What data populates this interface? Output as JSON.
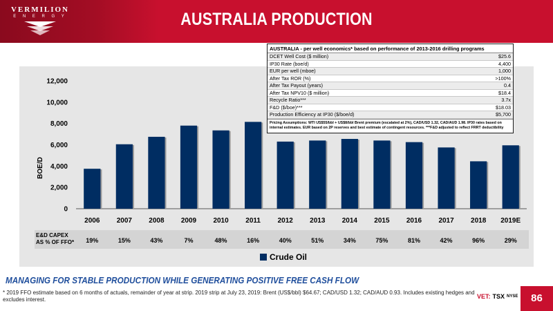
{
  "header": {
    "logo_main": "VERMILION",
    "logo_sub": "E N E R G Y",
    "title": "AUSTRALIA PRODUCTION"
  },
  "economics": {
    "title": "AUSTRALIA - per well economics* based on performance of 2013-2016 drilling programs",
    "rows": [
      {
        "label": "DCET Well Cost ($ million)",
        "value": "$25.6"
      },
      {
        "label": "IP30 Rate (boe/d)",
        "value": "4,400"
      },
      {
        "label": "EUR per well (mboe)",
        "value": "1,000"
      },
      {
        "label": "After Tax ROR (%)",
        "value": ">100%"
      },
      {
        "label": "After Tax Payout (years)",
        "value": "0.4"
      },
      {
        "label": "After Tax NPV10 ($ million)",
        "value": "$18.4"
      },
      {
        "label": "Recycle Ratio***",
        "value": "3.7x"
      },
      {
        "label": "F&D ($/boe)***",
        "value": "$18.03"
      },
      {
        "label": "Production Efficiency at IP30 ($/boe/d)",
        "value": "$5,700"
      }
    ],
    "note": "Pricing Assumptions: WTI US$55/bbl + US$8/bbl Brent premium (escalated at 2%), CAD/USD 1.32, CAD/AUD 1.98. IP30 rates based on internal estimates. EUR based on 2P reserves and best estimate of contingent resources. ***F&D adjusted to reflect FRRT deductibility"
  },
  "chart_data": {
    "type": "bar",
    "categories": [
      "2006",
      "2007",
      "2008",
      "2009",
      "2010",
      "2011",
      "2012",
      "2013",
      "2014",
      "2015",
      "2016",
      "2017",
      "2018",
      "2019E"
    ],
    "series": [
      {
        "name": "Crude Oil",
        "values": [
          3750,
          6050,
          6750,
          7800,
          7350,
          8150,
          6300,
          6400,
          6550,
          6400,
          6250,
          5750,
          4450,
          5950
        ]
      }
    ],
    "ylabel": "BOE/D",
    "ylim": [
      0,
      12000
    ],
    "yticks": [
      "0",
      "2,000",
      "4,000",
      "6,000",
      "8,000",
      "10,000",
      "12,000"
    ],
    "grid": false,
    "legend": "bottom-center",
    "bar_color": "#002d62"
  },
  "capex": {
    "label_line1": "E&D CAPEX",
    "label_line2": "AS % OF FFO*",
    "values": [
      "19%",
      "15%",
      "43%",
      "7%",
      "48%",
      "16%",
      "40%",
      "51%",
      "34%",
      "75%",
      "81%",
      "42%",
      "96%",
      "29%"
    ]
  },
  "legend_label": "Crude Oil",
  "subtitle": "MANAGING FOR STABLE PRODUCTION WHILE GENERATING POSITIVE FREE CASH FLOW",
  "footnote": "* 2019 FFO estimate based on 6 months of actuals, remainder of year at strip. 2019 strip at July 23, 2019: Brent (US$/bbl) $64.67; CAD/USD 1.32; CAD/AUD 0.93. Includes existing hedges and excludes interest.",
  "exchange": {
    "vet": "VET:",
    "tsx": "TSX",
    "nyse": "NYSE"
  },
  "page_number": "86",
  "colors": {
    "brand_red": "#c8102e",
    "subtitle_blue": "#1f4e9c",
    "bar_navy": "#002d62"
  }
}
